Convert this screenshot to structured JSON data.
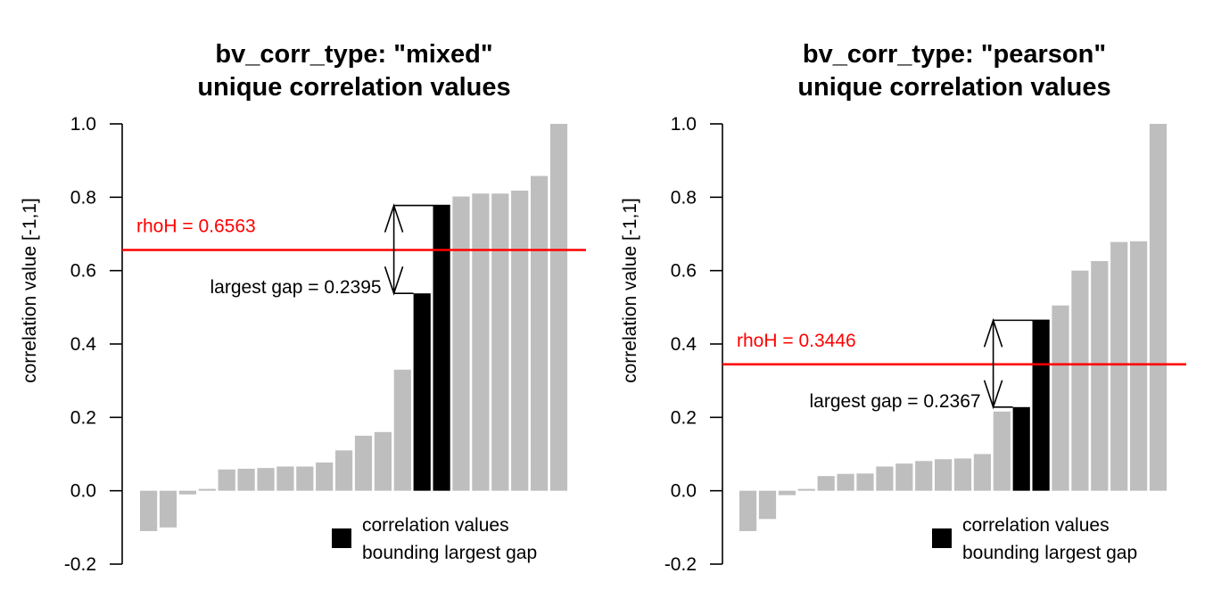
{
  "colors": {
    "bar_default": "#bebebe",
    "bar_highlight": "#000000",
    "threshold_line": "#ff0000",
    "axis": "#000000"
  },
  "chart_data": [
    {
      "type": "bar",
      "title_lines": [
        "bv_corr_type: \"mixed\"",
        "unique correlation values"
      ],
      "xlabel": "",
      "ylabel": "correlation value [-1,1]",
      "ylim": [
        -0.2,
        1.0
      ],
      "yticks": [
        -0.2,
        0.0,
        0.2,
        0.4,
        0.6,
        0.8,
        1.0
      ],
      "ytick_labels": [
        "-0.2",
        "0.0",
        "0.2",
        "0.4",
        "0.6",
        "0.8",
        "1.0"
      ],
      "values": [
        -0.11,
        -0.1,
        -0.01,
        0.005,
        0.058,
        0.06,
        0.062,
        0.066,
        0.066,
        0.077,
        0.11,
        0.15,
        0.16,
        0.33,
        0.538,
        0.7775,
        0.802,
        0.81,
        0.81,
        0.818,
        0.858,
        1.0
      ],
      "highlight_indices": [
        14,
        15
      ],
      "threshold": {
        "value": 0.6563,
        "label": "rhoH = 0.6563"
      },
      "gap": {
        "lower": 0.538,
        "upper": 0.7775,
        "label": "largest gap = 0.2395"
      },
      "legend": {
        "line1": "correlation values",
        "line2": "bounding largest gap",
        "position": "bottom-right"
      }
    },
    {
      "type": "bar",
      "title_lines": [
        "bv_corr_type: \"pearson\"",
        "unique correlation values"
      ],
      "xlabel": "",
      "ylabel": "correlation value [-1,1]",
      "ylim": [
        -0.2,
        1.0
      ],
      "yticks": [
        -0.2,
        0.0,
        0.2,
        0.4,
        0.6,
        0.8,
        1.0
      ],
      "ytick_labels": [
        "-0.2",
        "0.0",
        "0.2",
        "0.4",
        "0.6",
        "0.8",
        "1.0"
      ],
      "values": [
        -0.11,
        -0.077,
        -0.012,
        0.005,
        0.04,
        0.046,
        0.047,
        0.066,
        0.074,
        0.081,
        0.086,
        0.088,
        0.1,
        0.216,
        0.228,
        0.4647,
        0.505,
        0.6,
        0.626,
        0.678,
        0.68,
        1.0
      ],
      "highlight_indices": [
        14,
        15
      ],
      "threshold": {
        "value": 0.3446,
        "label": "rhoH = 0.3446"
      },
      "gap": {
        "lower": 0.228,
        "upper": 0.4647,
        "label": "largest gap = 0.2367"
      },
      "legend": {
        "line1": "correlation values",
        "line2": "bounding largest gap",
        "position": "bottom-right"
      }
    }
  ]
}
